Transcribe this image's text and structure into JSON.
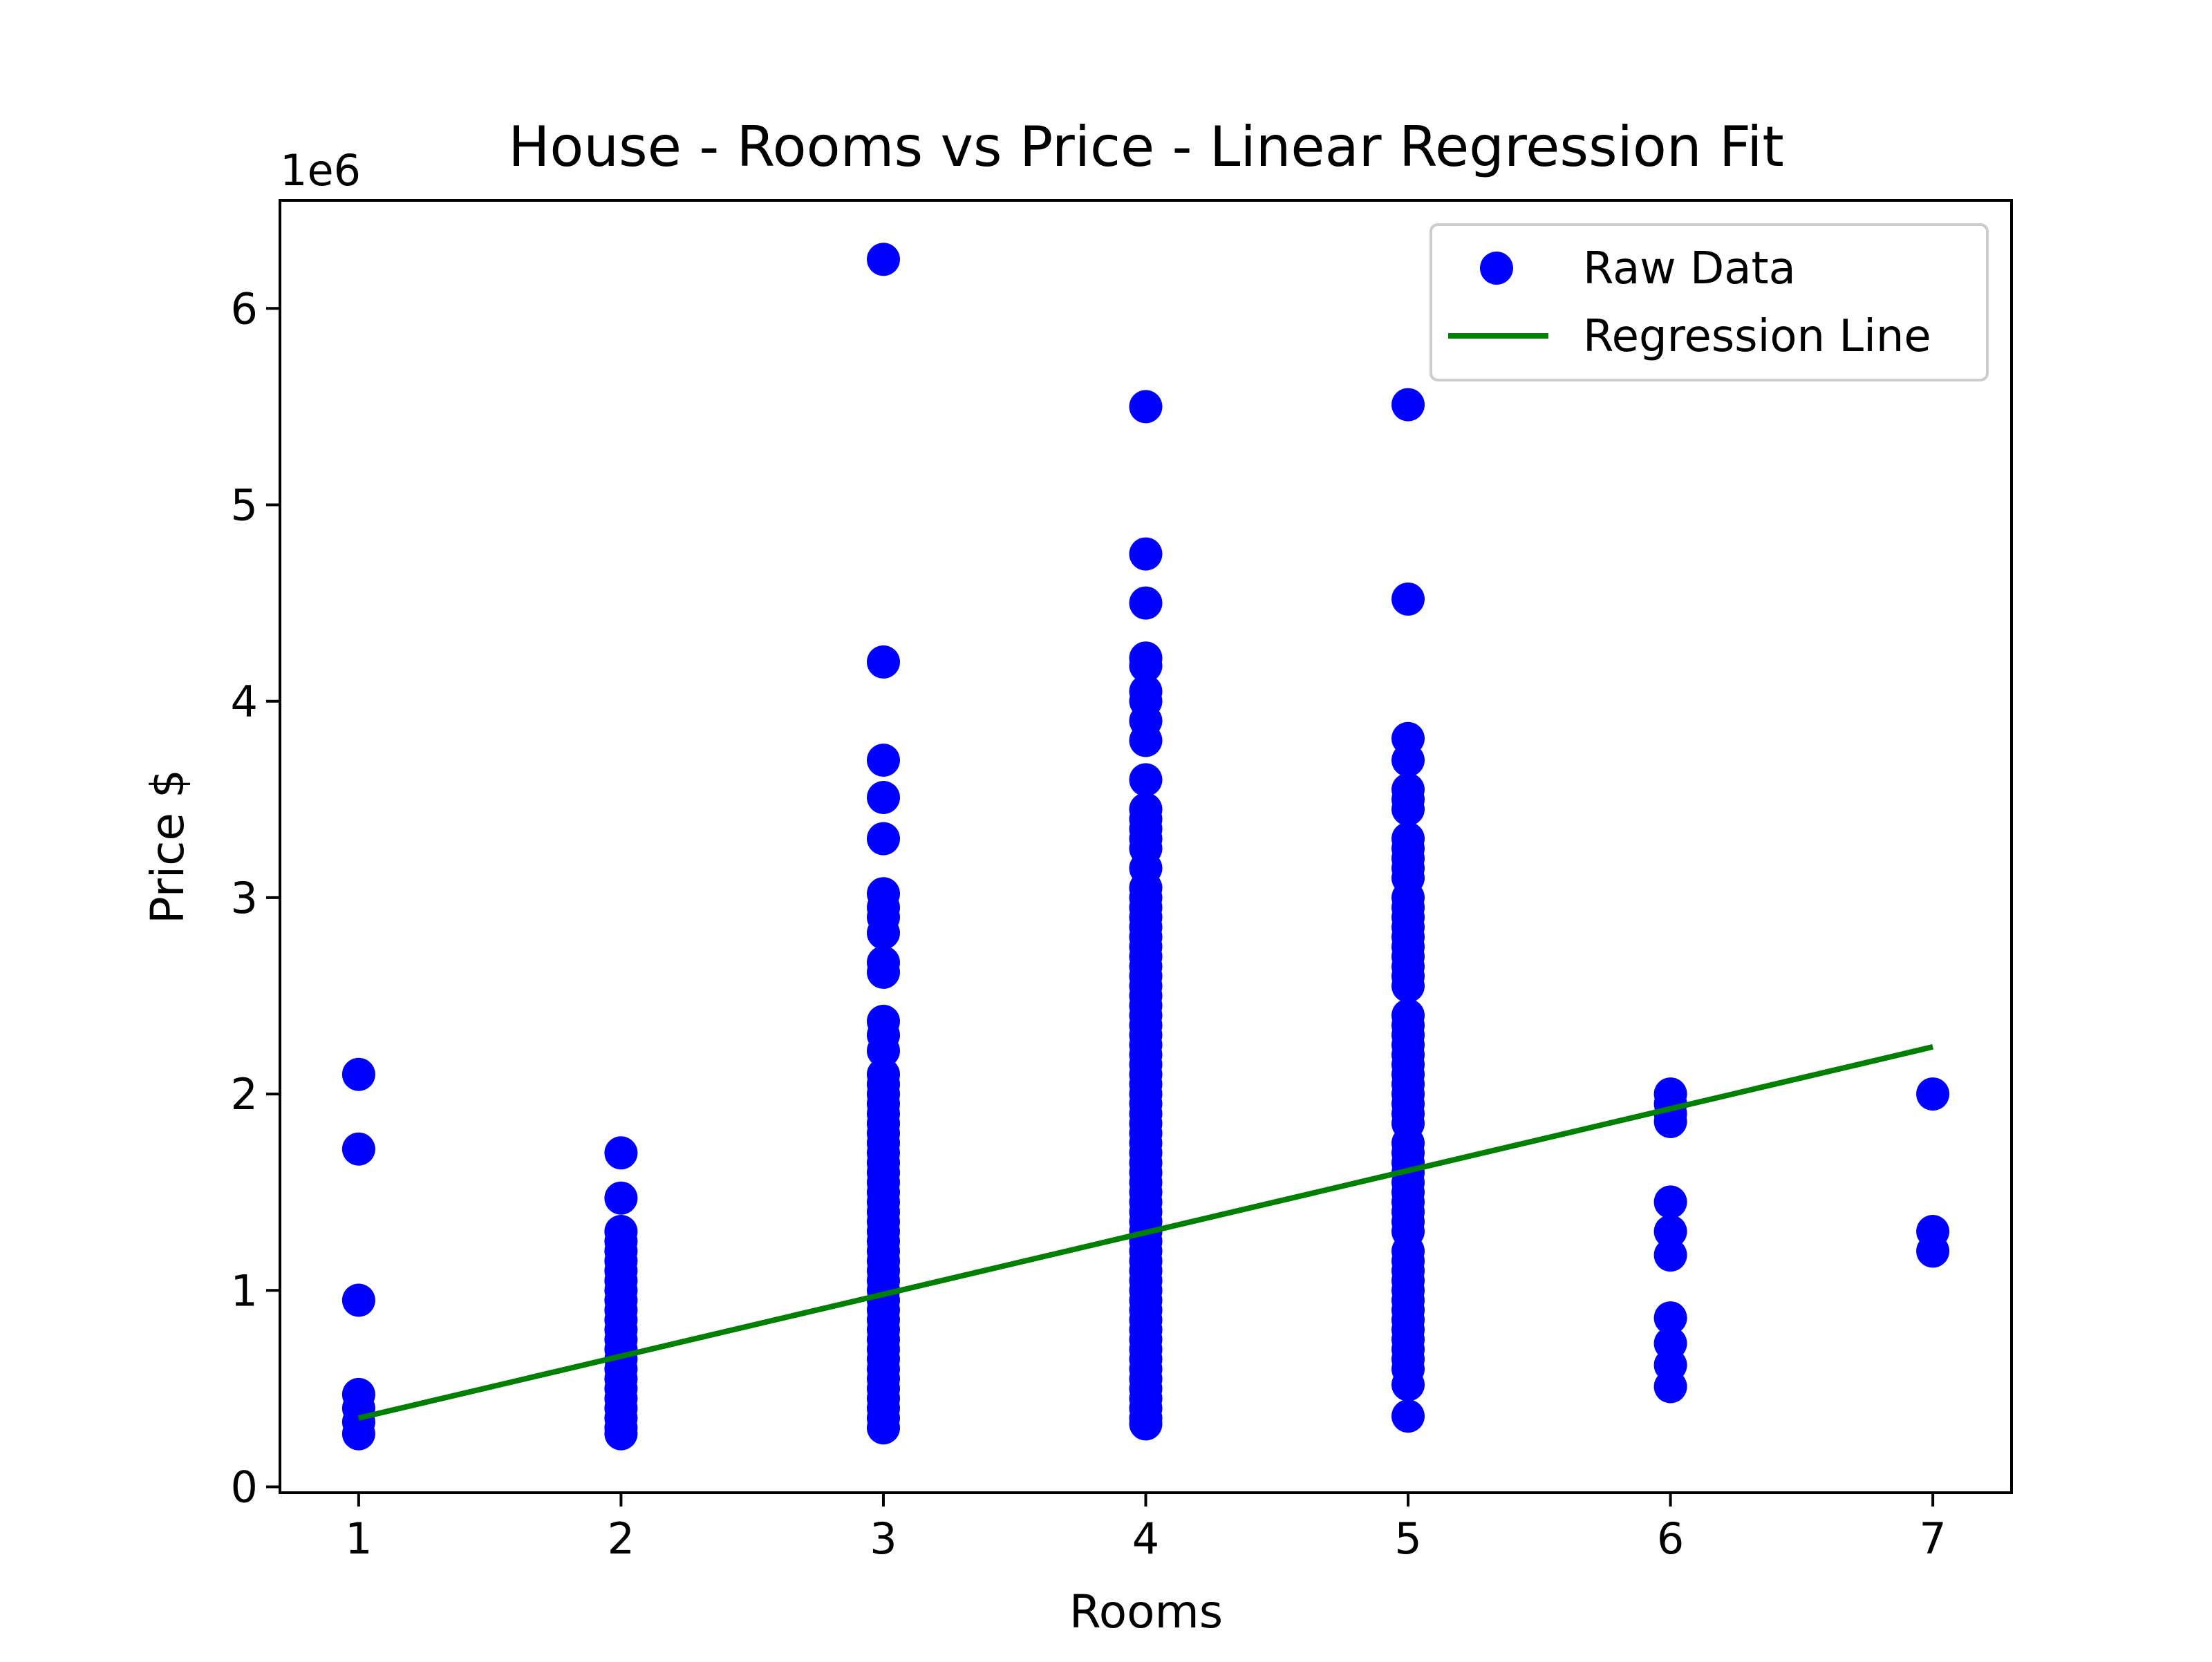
{
  "chart_data": {
    "type": "scatter",
    "title": "House - Rooms vs Price - Linear Regression Fit",
    "xlabel": "Rooms",
    "ylabel": "Price $",
    "y_offset_label": "1e6",
    "xlim": [
      0.7,
      7.3
    ],
    "ylim": [
      -0.03,
      6.55
    ],
    "x_ticks": [
      1,
      2,
      3,
      4,
      5,
      6,
      7
    ],
    "x_tick_labels": [
      "1",
      "2",
      "3",
      "4",
      "5",
      "6",
      "7"
    ],
    "y_ticks": [
      0,
      1,
      2,
      3,
      4,
      5,
      6
    ],
    "y_tick_labels": [
      "0",
      "1",
      "2",
      "3",
      "4",
      "5",
      "6"
    ],
    "grid": false,
    "legend_position": "top-right",
    "series": [
      {
        "name": "Raw Data",
        "kind": "scatter",
        "color": "#0000ff",
        "points": [
          [
            1,
            2.1
          ],
          [
            1,
            1.72
          ],
          [
            1,
            0.95
          ],
          [
            1,
            0.47
          ],
          [
            1,
            0.4
          ],
          [
            1,
            0.33
          ],
          [
            1,
            0.27
          ],
          [
            2,
            1.7
          ],
          [
            2,
            1.47
          ],
          [
            2,
            1.3
          ],
          [
            2,
            1.25
          ],
          [
            2,
            1.2
          ],
          [
            2,
            1.15
          ],
          [
            2,
            1.1
          ],
          [
            2,
            1.05
          ],
          [
            2,
            1.0
          ],
          [
            2,
            0.95
          ],
          [
            2,
            0.9
          ],
          [
            2,
            0.85
          ],
          [
            2,
            0.8
          ],
          [
            2,
            0.75
          ],
          [
            2,
            0.7
          ],
          [
            2,
            0.65
          ],
          [
            2,
            0.6
          ],
          [
            2,
            0.55
          ],
          [
            2,
            0.5
          ],
          [
            2,
            0.45
          ],
          [
            2,
            0.4
          ],
          [
            2,
            0.35
          ],
          [
            2,
            0.3
          ],
          [
            2,
            0.27
          ],
          [
            3,
            6.25
          ],
          [
            3,
            4.2
          ],
          [
            3,
            3.7
          ],
          [
            3,
            3.51
          ],
          [
            3,
            3.3
          ],
          [
            3,
            3.02
          ],
          [
            3,
            2.95
          ],
          [
            3,
            2.9
          ],
          [
            3,
            2.82
          ],
          [
            3,
            2.67
          ],
          [
            3,
            2.62
          ],
          [
            3,
            2.37
          ],
          [
            3,
            2.3
          ],
          [
            3,
            2.22
          ],
          [
            3,
            2.1
          ],
          [
            3,
            2.05
          ],
          [
            3,
            2.0
          ],
          [
            3,
            1.95
          ],
          [
            3,
            1.9
          ],
          [
            3,
            1.85
          ],
          [
            3,
            1.8
          ],
          [
            3,
            1.75
          ],
          [
            3,
            1.7
          ],
          [
            3,
            1.65
          ],
          [
            3,
            1.6
          ],
          [
            3,
            1.55
          ],
          [
            3,
            1.5
          ],
          [
            3,
            1.45
          ],
          [
            3,
            1.4
          ],
          [
            3,
            1.35
          ],
          [
            3,
            1.3
          ],
          [
            3,
            1.25
          ],
          [
            3,
            1.2
          ],
          [
            3,
            1.15
          ],
          [
            3,
            1.1
          ],
          [
            3,
            1.05
          ],
          [
            3,
            1.0
          ],
          [
            3,
            0.95
          ],
          [
            3,
            0.9
          ],
          [
            3,
            0.85
          ],
          [
            3,
            0.8
          ],
          [
            3,
            0.75
          ],
          [
            3,
            0.7
          ],
          [
            3,
            0.65
          ],
          [
            3,
            0.6
          ],
          [
            3,
            0.55
          ],
          [
            3,
            0.5
          ],
          [
            3,
            0.45
          ],
          [
            3,
            0.4
          ],
          [
            3,
            0.35
          ],
          [
            3,
            0.3
          ],
          [
            4,
            5.5
          ],
          [
            4,
            4.75
          ],
          [
            4,
            4.5
          ],
          [
            4,
            4.22
          ],
          [
            4,
            4.18
          ],
          [
            4,
            4.05
          ],
          [
            4,
            4.0
          ],
          [
            4,
            3.9
          ],
          [
            4,
            3.8
          ],
          [
            4,
            3.6
          ],
          [
            4,
            3.45
          ],
          [
            4,
            3.4
          ],
          [
            4,
            3.35
          ],
          [
            4,
            3.3
          ],
          [
            4,
            3.25
          ],
          [
            4,
            3.15
          ],
          [
            4,
            3.05
          ],
          [
            4,
            3.0
          ],
          [
            4,
            2.95
          ],
          [
            4,
            2.9
          ],
          [
            4,
            2.85
          ],
          [
            4,
            2.8
          ],
          [
            4,
            2.75
          ],
          [
            4,
            2.7
          ],
          [
            4,
            2.65
          ],
          [
            4,
            2.6
          ],
          [
            4,
            2.55
          ],
          [
            4,
            2.5
          ],
          [
            4,
            2.45
          ],
          [
            4,
            2.4
          ],
          [
            4,
            2.35
          ],
          [
            4,
            2.3
          ],
          [
            4,
            2.25
          ],
          [
            4,
            2.2
          ],
          [
            4,
            2.15
          ],
          [
            4,
            2.1
          ],
          [
            4,
            2.05
          ],
          [
            4,
            2.0
          ],
          [
            4,
            1.95
          ],
          [
            4,
            1.9
          ],
          [
            4,
            1.85
          ],
          [
            4,
            1.8
          ],
          [
            4,
            1.75
          ],
          [
            4,
            1.7
          ],
          [
            4,
            1.65
          ],
          [
            4,
            1.6
          ],
          [
            4,
            1.55
          ],
          [
            4,
            1.5
          ],
          [
            4,
            1.45
          ],
          [
            4,
            1.4
          ],
          [
            4,
            1.35
          ],
          [
            4,
            1.3
          ],
          [
            4,
            1.25
          ],
          [
            4,
            1.2
          ],
          [
            4,
            1.15
          ],
          [
            4,
            1.1
          ],
          [
            4,
            1.05
          ],
          [
            4,
            1.0
          ],
          [
            4,
            0.95
          ],
          [
            4,
            0.9
          ],
          [
            4,
            0.85
          ],
          [
            4,
            0.8
          ],
          [
            4,
            0.75
          ],
          [
            4,
            0.7
          ],
          [
            4,
            0.65
          ],
          [
            4,
            0.6
          ],
          [
            4,
            0.55
          ],
          [
            4,
            0.5
          ],
          [
            4,
            0.45
          ],
          [
            4,
            0.4
          ],
          [
            4,
            0.35
          ],
          [
            4,
            0.32
          ],
          [
            5,
            5.51
          ],
          [
            5,
            4.52
          ],
          [
            5,
            3.81
          ],
          [
            5,
            3.7
          ],
          [
            5,
            3.55
          ],
          [
            5,
            3.5
          ],
          [
            5,
            3.45
          ],
          [
            5,
            3.3
          ],
          [
            5,
            3.25
          ],
          [
            5,
            3.2
          ],
          [
            5,
            3.15
          ],
          [
            5,
            3.1
          ],
          [
            5,
            3.0
          ],
          [
            5,
            2.95
          ],
          [
            5,
            2.9
          ],
          [
            5,
            2.85
          ],
          [
            5,
            2.8
          ],
          [
            5,
            2.75
          ],
          [
            5,
            2.7
          ],
          [
            5,
            2.65
          ],
          [
            5,
            2.6
          ],
          [
            5,
            2.55
          ],
          [
            5,
            2.4
          ],
          [
            5,
            2.35
          ],
          [
            5,
            2.3
          ],
          [
            5,
            2.25
          ],
          [
            5,
            2.2
          ],
          [
            5,
            2.15
          ],
          [
            5,
            2.1
          ],
          [
            5,
            2.05
          ],
          [
            5,
            2.0
          ],
          [
            5,
            1.95
          ],
          [
            5,
            1.9
          ],
          [
            5,
            1.85
          ],
          [
            5,
            1.75
          ],
          [
            5,
            1.7
          ],
          [
            5,
            1.65
          ],
          [
            5,
            1.6
          ],
          [
            5,
            1.55
          ],
          [
            5,
            1.5
          ],
          [
            5,
            1.45
          ],
          [
            5,
            1.4
          ],
          [
            5,
            1.35
          ],
          [
            5,
            1.3
          ],
          [
            5,
            1.2
          ],
          [
            5,
            1.15
          ],
          [
            5,
            1.1
          ],
          [
            5,
            1.05
          ],
          [
            5,
            1.0
          ],
          [
            5,
            0.95
          ],
          [
            5,
            0.9
          ],
          [
            5,
            0.85
          ],
          [
            5,
            0.8
          ],
          [
            5,
            0.75
          ],
          [
            5,
            0.7
          ],
          [
            5,
            0.65
          ],
          [
            5,
            0.6
          ],
          [
            5,
            0.52
          ],
          [
            5,
            0.36
          ],
          [
            6,
            2.0
          ],
          [
            6,
            1.95
          ],
          [
            6,
            1.9
          ],
          [
            6,
            1.86
          ],
          [
            6,
            1.45
          ],
          [
            6,
            1.3
          ],
          [
            6,
            1.18
          ],
          [
            6,
            0.86
          ],
          [
            6,
            0.73
          ],
          [
            6,
            0.62
          ],
          [
            6,
            0.51
          ],
          [
            7,
            2.0
          ],
          [
            7,
            1.3
          ],
          [
            7,
            1.2
          ]
        ]
      },
      {
        "name": "Regression Line",
        "kind": "line",
        "color": "#008000",
        "x": [
          1,
          7
        ],
        "y": [
          0.35,
          2.24
        ]
      }
    ]
  }
}
